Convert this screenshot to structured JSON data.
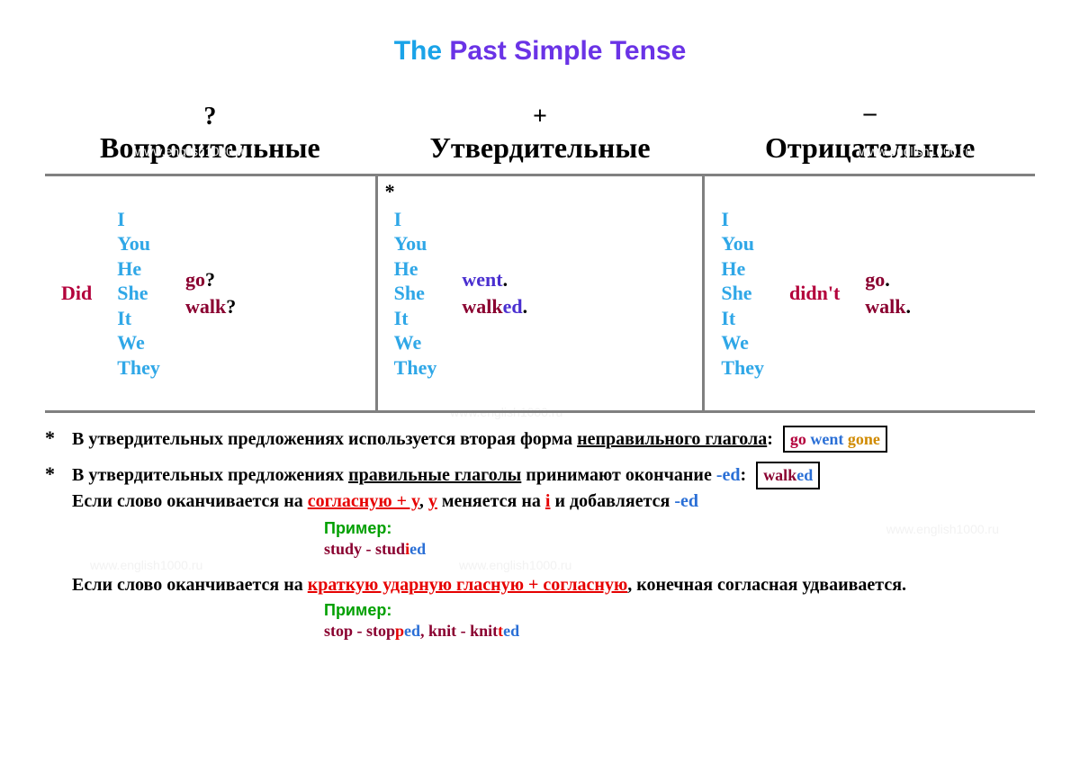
{
  "title": {
    "part1": "The ",
    "part2": "Past Simple Tense"
  },
  "columns": {
    "q": {
      "symbol": "?",
      "label": "Вопросительные"
    },
    "a": {
      "symbol": "+",
      "label": "Утвердительные"
    },
    "n": {
      "symbol": "–",
      "label": "Отрицательные"
    }
  },
  "pronouns": [
    "I",
    "You",
    "He",
    "She",
    "It",
    "We",
    "They"
  ],
  "cells": {
    "q": {
      "aux": "Did",
      "verbs": [
        {
          "base": "go",
          "suffix": "?",
          "suffix_color": "black"
        },
        {
          "base": "walk",
          "suffix": "?",
          "suffix_color": "black"
        }
      ]
    },
    "a": {
      "star": "*",
      "verbs": [
        {
          "base": "went",
          "base_color": "blue-purple",
          "suffix": ".",
          "suffix_color": "black"
        },
        {
          "base": "walk",
          "base_color": "dark-red",
          "mid": "ed",
          "mid_color": "blue-purple",
          "suffix": ".",
          "suffix_color": "black"
        }
      ]
    },
    "n": {
      "aux": "didn't",
      "verbs": [
        {
          "base": "go",
          "suffix": ".",
          "suffix_color": "black"
        },
        {
          "base": "walk",
          "suffix": ".",
          "suffix_color": "black"
        }
      ]
    }
  },
  "notes": {
    "note1": {
      "t1": "В утвердительных предложениях используется вторая форма ",
      "u1": "неправильного глагола",
      "t2": ": ",
      "box": {
        "go": "go",
        "went": "went",
        "gone": "gone"
      }
    },
    "note2": {
      "t1": "В утвердительных предложениях ",
      "u1": "правильные глаголы",
      "t2": " принимают окончание ",
      "ed": "-ed",
      "t3": ": ",
      "box": {
        "walk": "walk",
        "ed": "ed"
      },
      "line2a": "Если слово оканчивается на ",
      "line2_red1": "согласную + y",
      "line2b": ", ",
      "line2_y": "y",
      "line2c": " меняется на ",
      "line2_i": "i",
      "line2d": " и добавляется ",
      "line2_ed": "-ed"
    },
    "example_label": "Пример:",
    "ex1": {
      "a": "study",
      "dash": " - ",
      "b": "stud",
      "c": "i",
      "d": "ed"
    },
    "note3": {
      "t1": "Если слово оканчивается на ",
      "red": "краткую ударную гласную + согласную",
      "t2": ", конечная согласная удваивается."
    },
    "ex2": {
      "a": "stop",
      "dash": " - ",
      "b": "stop",
      "c": "p",
      "d": "ed",
      "comma": ", ",
      "e": "knit",
      "f": " - ",
      "g": "knit",
      "h": "t",
      "i": "ed"
    }
  },
  "watermark": "www.english1000.ru",
  "colors": {
    "title1": "#1aa3e8",
    "title2": "#6a33e6",
    "pronoun": "#2fa7e7",
    "aux": "#b3003b",
    "verb_dark_red": "#8a0030",
    "verb_blue": "#4a2fd0",
    "grid_border": "#808080",
    "red": "#e60000",
    "blue_ed": "#2a6fd6",
    "green": "#00a000",
    "gone": "#d08a00"
  }
}
